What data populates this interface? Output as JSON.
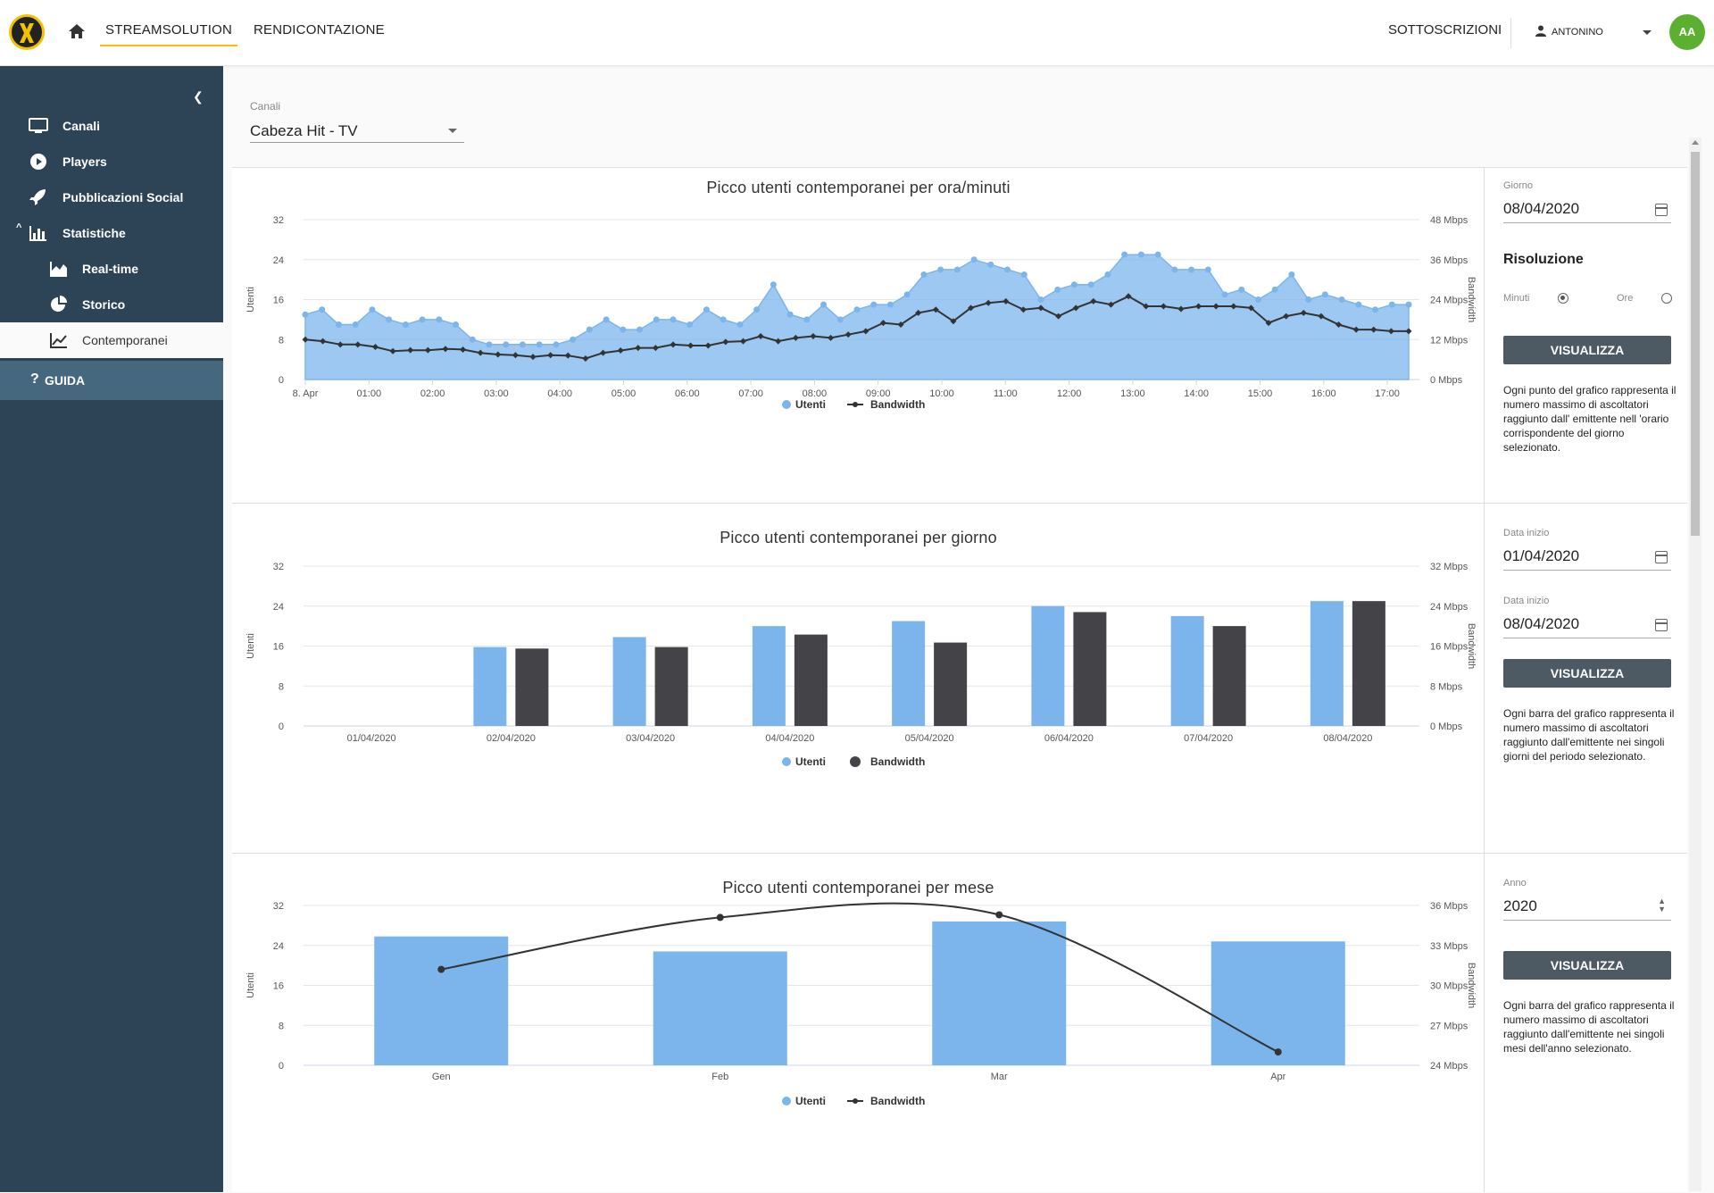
{
  "header": {
    "nav": [
      {
        "label": "STREAMSOLUTION",
        "active": true
      },
      {
        "label": "RENDICONTAZIONE",
        "active": false
      }
    ],
    "subscriptions_label": "SOTTOSCRIZIONI",
    "user_name": "ANTONINO",
    "avatar_initials": "AA"
  },
  "sidebar": {
    "items": [
      {
        "label": "Canali",
        "icon": "monitor-icon"
      },
      {
        "label": "Players",
        "icon": "play-circle-icon"
      },
      {
        "label": "Pubblicazioni Social",
        "icon": "rocket-icon"
      },
      {
        "label": "Statistiche",
        "icon": "bar-chart-icon"
      },
      {
        "label": "Real-time",
        "icon": "area-chart-icon"
      },
      {
        "label": "Storico",
        "icon": "pie-chart-icon"
      },
      {
        "label": "Contemporanei",
        "icon": "line-chart-icon"
      }
    ],
    "guida_label": "GUIDA"
  },
  "channel": {
    "label": "Canali",
    "value": "Cabeza Hit - TV"
  },
  "panels": {
    "hourly": {
      "date_label": "Giorno",
      "date_value": "08/04/2020",
      "resolution_title": "Risoluzione",
      "option_minutes": "Minuti",
      "option_hours": "Ore",
      "button": "VISUALIZZA",
      "description": "Ogni punto del grafico rappresenta il numero massimo di ascoltatori raggiunto dall' emittente nell 'orario corrispondente del giorno selezionato."
    },
    "daily": {
      "start_label": "Data inizio",
      "start_value": "01/04/2020",
      "end_label": "Data inizio",
      "end_value": "08/04/2020",
      "button": "VISUALIZZA",
      "description": "Ogni barra del grafico rappresenta il numero massimo di ascoltatori raggiunto dall'emittente nei singoli giorni del periodo selezionato."
    },
    "monthly": {
      "year_label": "Anno",
      "year_value": "2020",
      "button": "VISUALIZZA",
      "description": "Ogni barra del grafico rappresenta il numero massimo di ascoltatori raggiunto dall'emittente nei singoli mesi dell'anno selezionato."
    }
  },
  "chart_data": [
    {
      "type": "area",
      "title": "Picco utenti contemporanei per ora/minuti",
      "ylabel": "Utenti",
      "y2label": "Bandwidth",
      "ylim": [
        0,
        32
      ],
      "y2lim": [
        0,
        48
      ],
      "yticks": [
        "0",
        "8",
        "16",
        "24",
        "32"
      ],
      "y2ticks": [
        "0 Mbps",
        "12 Mbps",
        "24 Mbps",
        "36 Mbps",
        "48 Mbps"
      ],
      "xticks": [
        "8. Apr",
        "01:00",
        "02:00",
        "03:00",
        "04:00",
        "05:00",
        "06:00",
        "07:00",
        "08:00",
        "09:00",
        "10:00",
        "11:00",
        "12:00",
        "13:00",
        "14:00",
        "15:00",
        "16:00",
        "17:00"
      ],
      "legend": [
        "Utenti",
        "Bandwidth"
      ],
      "colors": {
        "utenti": "#7cb5ec",
        "bandwidth": "#333333"
      },
      "series": [
        {
          "name": "Utenti",
          "values": [
            13,
            14,
            11,
            11,
            14,
            12,
            11,
            12,
            12,
            11,
            8,
            7,
            7,
            7,
            7,
            7,
            8,
            10,
            12,
            10,
            10,
            12,
            12,
            11,
            14,
            12,
            11,
            14,
            19,
            13,
            12,
            15,
            12,
            14,
            15,
            15,
            17,
            21,
            22,
            22,
            24,
            23,
            22,
            21,
            16,
            18,
            19,
            19,
            21,
            25,
            25,
            25,
            22,
            22,
            22,
            17,
            18,
            16,
            18,
            21,
            16,
            17,
            16,
            15,
            14,
            15,
            15
          ]
        },
        {
          "name": "Bandwidth",
          "values": [
            12,
            11.5,
            10.5,
            10.5,
            9.8,
            8.5,
            8.8,
            8.8,
            9.2,
            9,
            8,
            7.5,
            7.3,
            6.8,
            7.3,
            7.2,
            6.3,
            8,
            8.7,
            9.5,
            9.5,
            10.5,
            10.2,
            10.2,
            11.3,
            11.5,
            13,
            11.5,
            12.5,
            13,
            12.5,
            13.5,
            14.5,
            17,
            16.5,
            20,
            21,
            17.5,
            21.5,
            23,
            23.5,
            21,
            21.5,
            19,
            21.5,
            23.5,
            22.5,
            25,
            22,
            22,
            21.2,
            22,
            22,
            22,
            21.5,
            17,
            19,
            20,
            19,
            16.5,
            15,
            15,
            14.5,
            14.5
          ]
        }
      ]
    },
    {
      "type": "bar",
      "title": "Picco utenti contemporanei per giorno",
      "ylabel": "Utenti",
      "y2label": "Bandwidth",
      "ylim": [
        0,
        32
      ],
      "y2lim": [
        0,
        32
      ],
      "yticks": [
        "0",
        "8",
        "16",
        "24",
        "32"
      ],
      "y2ticks": [
        "0 Mbps",
        "8 Mbps",
        "16 Mbps",
        "24 Mbps",
        "32 Mbps"
      ],
      "categories": [
        "01/04/2020",
        "02/04/2020",
        "03/04/2020",
        "04/04/2020",
        "05/04/2020",
        "06/04/2020",
        "07/04/2020",
        "08/04/2020"
      ],
      "legend": [
        "Utenti",
        "Bandwidth"
      ],
      "colors": {
        "utenti": "#7cb5ec",
        "bandwidth": "#434348"
      },
      "series": [
        {
          "name": "Utenti",
          "values": [
            0,
            15.8,
            17.8,
            20,
            21,
            24,
            22,
            25
          ]
        },
        {
          "name": "Bandwidth",
          "values": [
            0,
            15.5,
            15.8,
            18.3,
            16.7,
            22.8,
            20,
            25
          ]
        }
      ]
    },
    {
      "type": "bar",
      "title": "Picco utenti contemporanei per mese",
      "ylabel": "Utenti",
      "y2label": "Bandwidth",
      "ylim": [
        0,
        32
      ],
      "y2lim": [
        24,
        36
      ],
      "yticks": [
        "0",
        "8",
        "16",
        "24",
        "32"
      ],
      "y2ticks": [
        "24 Mbps",
        "27 Mbps",
        "30 Mbps",
        "33 Mbps",
        "36 Mbps"
      ],
      "categories": [
        "Gen",
        "Feb",
        "Mar",
        "Apr"
      ],
      "legend": [
        "Utenti",
        "Bandwidth"
      ],
      "colors": {
        "utenti": "#7cb5ec",
        "bandwidth": "#333333"
      },
      "series": [
        {
          "name": "Utenti",
          "values": [
            25.8,
            22.8,
            28.8,
            24.8
          ]
        },
        {
          "name": "Bandwidth",
          "values": [
            31.2,
            35.1,
            35.3,
            25
          ]
        }
      ]
    }
  ]
}
